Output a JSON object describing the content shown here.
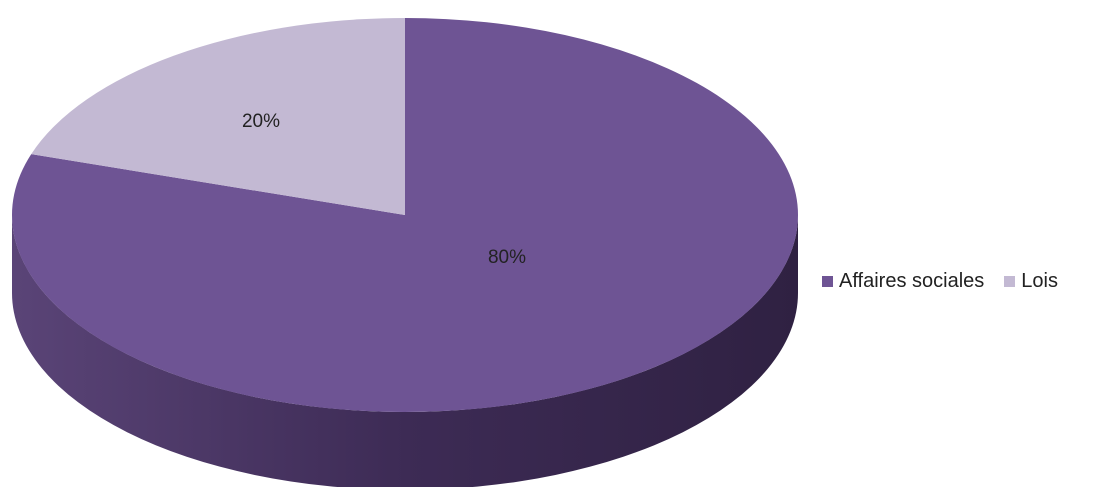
{
  "chart_data": {
    "type": "pie",
    "style": "3d",
    "categories": [
      "Affaires sociales",
      "Lois"
    ],
    "values": [
      80,
      20
    ],
    "labels": [
      "80%",
      "20%"
    ],
    "colors": [
      "#6e5494",
      "#c3b9d3"
    ],
    "side_colors": [
      "#3f2d57",
      "#a89cba"
    ],
    "legend_position": "right",
    "title": ""
  }
}
